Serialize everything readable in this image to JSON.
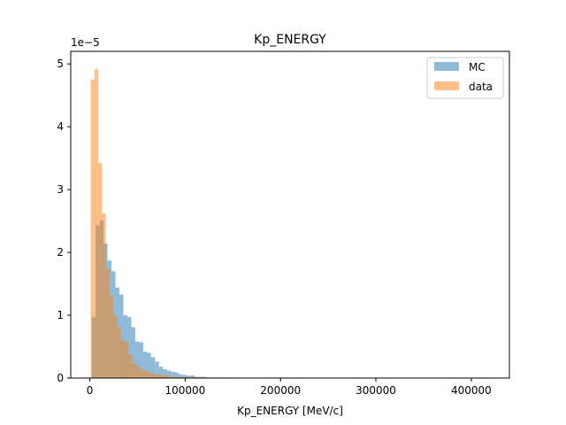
{
  "chart_data": {
    "type": "bar",
    "title": "Kp_ENERGY",
    "xlabel": "Kp_ENERGY [MeV/c]",
    "ylabel": "",
    "y_scale_label": "1e−5",
    "xlim": [
      -20000,
      440000
    ],
    "ylim": [
      0,
      5.2
    ],
    "x_ticks": [
      0,
      100000,
      200000,
      300000,
      400000
    ],
    "y_ticks": [
      0,
      1,
      2,
      3,
      4,
      5
    ],
    "legend_position": "top-right",
    "grid": false,
    "series": [
      {
        "name": "MC",
        "color": "#1f77b4",
        "alpha": 0.5,
        "bin_start": 2000,
        "bin_width": 4150,
        "values": [
          0.97,
          2.43,
          2.51,
          2.14,
          1.87,
          1.7,
          1.44,
          1.33,
          1.0,
          0.97,
          0.81,
          0.58,
          0.57,
          0.42,
          0.4,
          0.33,
          0.26,
          0.18,
          0.14,
          0.12,
          0.1,
          0.09,
          0.06,
          0.05,
          0.04,
          0.04,
          0.02,
          0.02,
          0.02,
          0.01,
          0.01,
          0.01,
          0.01,
          0.01,
          0.0,
          0.01,
          0.0,
          0.0,
          0.0,
          0.0,
          0.0,
          0.0,
          0.0,
          0.0,
          0.0,
          0.0,
          0.0,
          0.0,
          0.0,
          0.0,
          0.0,
          0.0,
          0.0,
          0.0,
          0.0,
          0.0,
          0.0,
          0.0,
          0.0,
          0.0,
          0.0,
          0.0,
          0.0,
          0.0,
          0.0,
          0.0,
          0.0,
          0.0,
          0.0,
          0.0,
          0.0,
          0.0,
          0.0,
          0.0,
          0.0,
          0.0,
          0.0,
          0.0,
          0.0,
          0.0,
          0.0,
          0.0,
          0.0,
          0.0,
          0.0,
          0.0,
          0.0,
          0.0,
          0.0,
          0.0,
          0.0,
          0.0,
          0.0,
          0.0,
          0.0,
          0.0,
          0.0,
          0.0,
          0.0,
          0.01
        ]
      },
      {
        "name": "data",
        "color": "#ff7f0e",
        "alpha": 0.5,
        "bin_start": 1000,
        "bin_width": 3950,
        "values": [
          4.75,
          4.92,
          3.42,
          2.62,
          1.74,
          1.31,
          1.0,
          0.82,
          0.6,
          0.58,
          0.38,
          0.24,
          0.2,
          0.14,
          0.12,
          0.09,
          0.07,
          0.06,
          0.06,
          0.04,
          0.05,
          0.03,
          0.02,
          0.02,
          0.01,
          0.02,
          0.01,
          0.02,
          0.01,
          0.0,
          0.01,
          0.0,
          0.0,
          0.0,
          0.0,
          0.0,
          0.0,
          0.0,
          0.0,
          0.0,
          0.0,
          0.0,
          0.0,
          0.0,
          0.0,
          0.0,
          0.0,
          0.0,
          0.0,
          0.0,
          0.01
        ]
      }
    ]
  }
}
